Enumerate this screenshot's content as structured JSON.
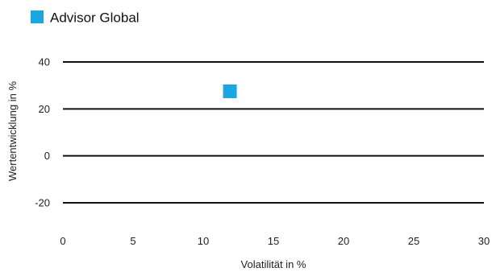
{
  "chart_data": {
    "type": "scatter",
    "title": "",
    "xlabel": "Volatilität in %",
    "ylabel": "Wertentwicklung in %",
    "xlim": [
      0,
      30
    ],
    "ylim": [
      -30,
      40
    ],
    "x_ticks": [
      0,
      5,
      10,
      15,
      20,
      25,
      30
    ],
    "y_ticks": [
      -20,
      0,
      20,
      40
    ],
    "grid": "horizontal",
    "legend_position": "top-left",
    "series": [
      {
        "name": "Advisor Global",
        "color": "#1aa7e0",
        "marker": "square",
        "points": [
          {
            "x": 11.9,
            "y": 27.5
          }
        ]
      }
    ]
  }
}
